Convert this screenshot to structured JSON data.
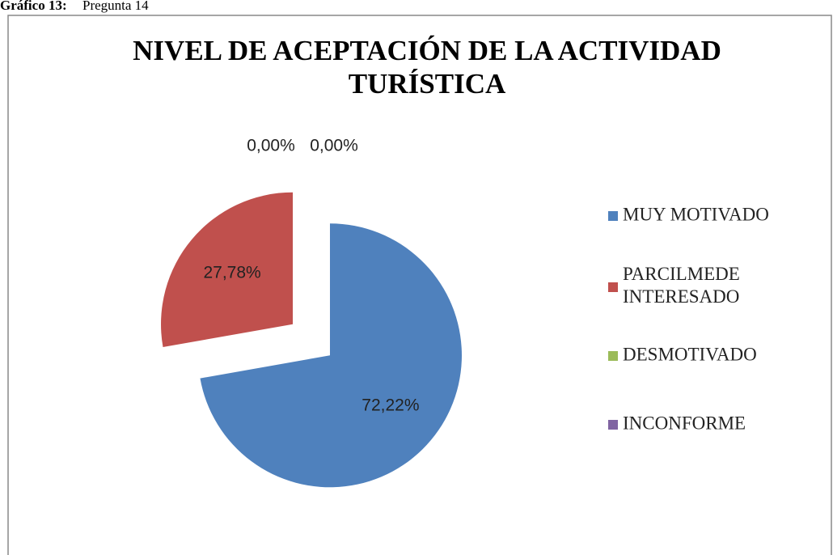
{
  "caption": {
    "label": "Gráfico 13:",
    "text": "Pregunta 14"
  },
  "chart_data": {
    "type": "pie",
    "title": [
      "NIVEL DE ACEPTACIÓN DE LA ACTIVIDAD",
      "TURÍSTICA"
    ],
    "categories": [
      "MUY MOTIVADO",
      "PARCILMEDE INTERESADO",
      "DESMOTIVADO",
      "INCONFORME"
    ],
    "values": [
      72.22,
      27.78,
      0,
      0
    ],
    "value_labels": [
      "72,22%",
      "27,78%",
      "0,00%",
      "0,00%"
    ],
    "colors": [
      "#4f81bd",
      "#c0504d",
      "#9bbb59",
      "#8064a2"
    ],
    "legend": "right"
  }
}
